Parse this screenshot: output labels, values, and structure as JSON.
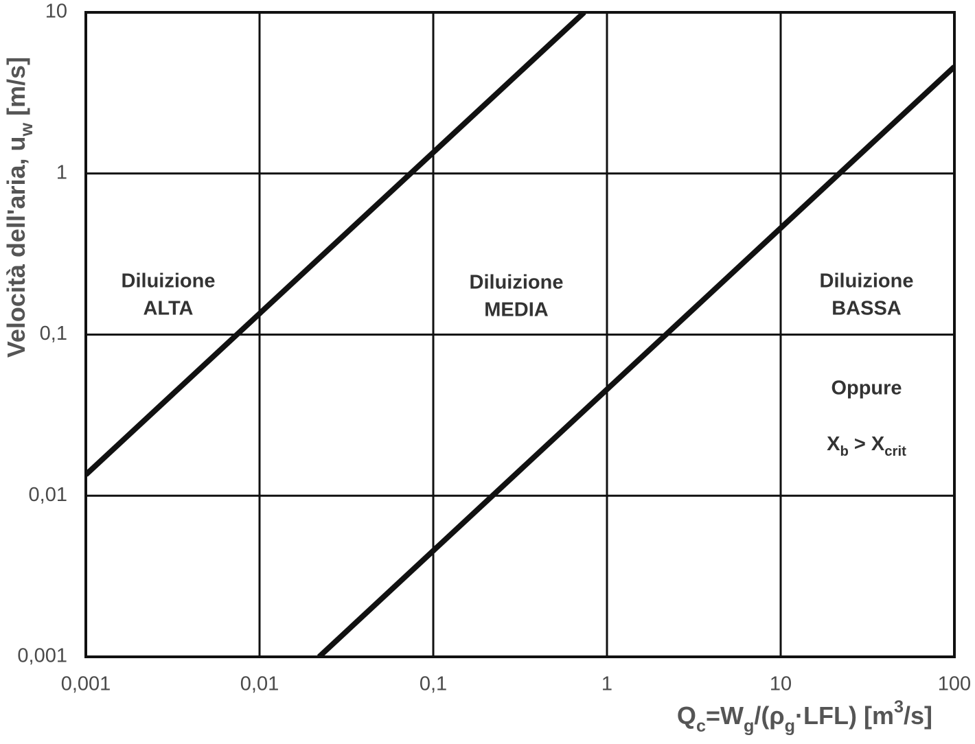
{
  "chart_data": {
    "type": "line",
    "x_label": [
      "Q",
      "c",
      "=W",
      "g",
      "/(ρ",
      "g",
      "·LFL) [m",
      "3",
      "/s]"
    ],
    "y_label": [
      "Velocità dell'aria, u",
      "w",
      " [m/s]"
    ],
    "log_x": true,
    "log_y": true,
    "grid": true,
    "xlim": [
      0.001,
      100
    ],
    "ylim": [
      0.001,
      10
    ],
    "xticks": [
      {
        "value": 0.001,
        "label": "0,001"
      },
      {
        "value": 0.01,
        "label": "0,01"
      },
      {
        "value": 0.1,
        "label": "0,1"
      },
      1,
      10,
      100
    ],
    "yticks": [
      {
        "value": 0.001,
        "label": "0,001"
      },
      {
        "value": 0.01,
        "label": "0,01"
      },
      {
        "value": 0.1,
        "label": "0,1"
      },
      1,
      10
    ],
    "series": [
      {
        "color": "#111111",
        "x": [
          0.001,
          0.74
        ],
        "values": [
          0.0135,
          10
        ]
      },
      {
        "color": "#111111",
        "x": [
          0.022,
          100
        ],
        "values": [
          0.001,
          4.6
        ]
      }
    ],
    "annotations": [
      {
        "lines": [
          "Diluizione",
          "ALTA"
        ]
      },
      {
        "lines": [
          "Diluizione",
          "MEDIA"
        ]
      },
      {
        "lines": [
          "Diluizione",
          "BASSA"
        ]
      },
      {
        "lines": [
          "Oppure"
        ]
      },
      {
        "lines": [
          "X",
          "b",
          " > X",
          "crit"
        ]
      }
    ]
  }
}
